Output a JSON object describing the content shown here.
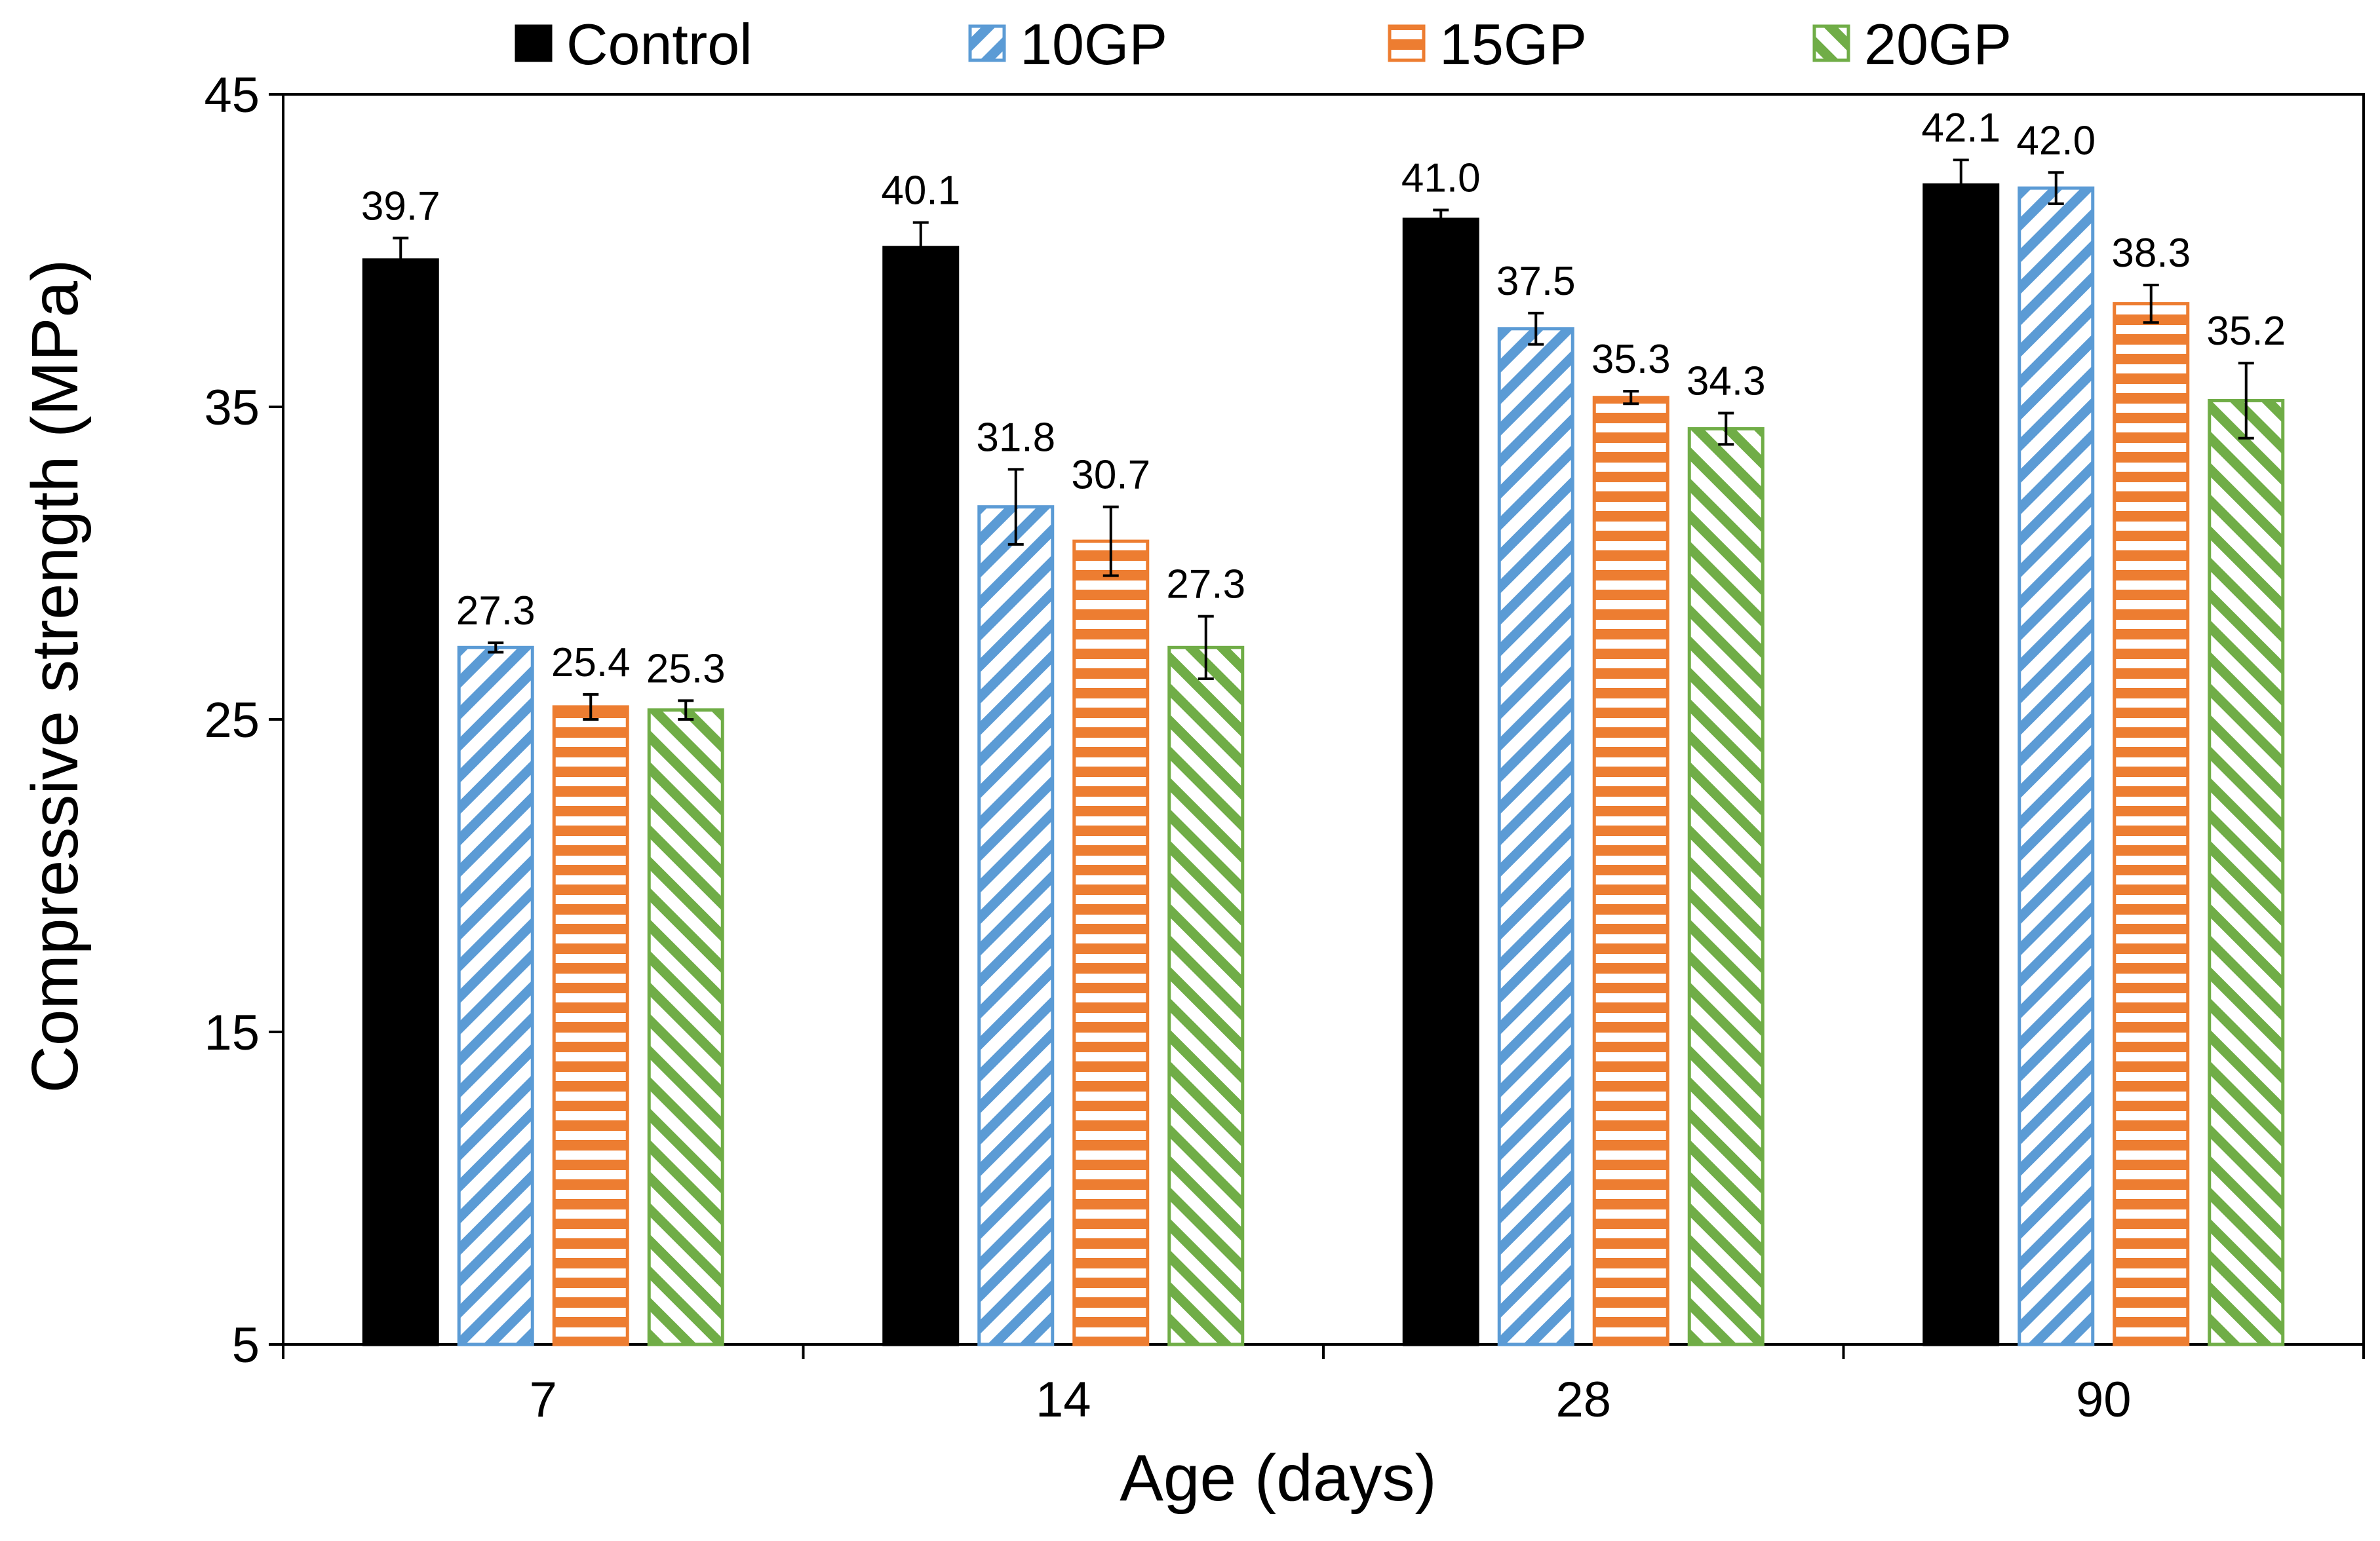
{
  "chart_data": {
    "type": "bar",
    "title": "",
    "xlabel": "Age (days)",
    "ylabel": "Compressive strength (MPa)",
    "ylim": [
      5,
      45
    ],
    "yticks": [
      5,
      15,
      25,
      35,
      45
    ],
    "categories": [
      "7",
      "14",
      "28",
      "90"
    ],
    "legend_position": "top",
    "series": [
      {
        "name": "Control",
        "pattern": "solid",
        "color": "#000000",
        "values": [
          39.7,
          40.1,
          41.0,
          42.1
        ],
        "labels": [
          "39.7",
          "40.1",
          "41.0",
          "42.1"
        ],
        "errors": [
          0.7,
          0.8,
          0.3,
          0.8
        ]
      },
      {
        "name": "10GP",
        "pattern": "diagonal-down",
        "color": "#5b9bd5",
        "values": [
          27.3,
          31.8,
          37.5,
          42.0
        ],
        "labels": [
          "27.3",
          "31.8",
          "37.5",
          "42.0"
        ],
        "errors": [
          0.15,
          1.2,
          0.5,
          0.5
        ]
      },
      {
        "name": "15GP",
        "pattern": "horizontal",
        "color": "#ed7d31",
        "values": [
          25.4,
          30.7,
          35.3,
          38.3
        ],
        "labels": [
          "25.4",
          "30.7",
          "35.3",
          "38.3"
        ],
        "errors": [
          0.4,
          1.1,
          0.2,
          0.6
        ]
      },
      {
        "name": "20GP",
        "pattern": "diagonal-up",
        "color": "#70ad47",
        "values": [
          25.3,
          27.3,
          34.3,
          35.2
        ],
        "labels": [
          "25.3",
          "27.3",
          "34.3",
          "35.2"
        ],
        "errors": [
          0.3,
          1.0,
          0.5,
          1.2
        ]
      }
    ]
  }
}
